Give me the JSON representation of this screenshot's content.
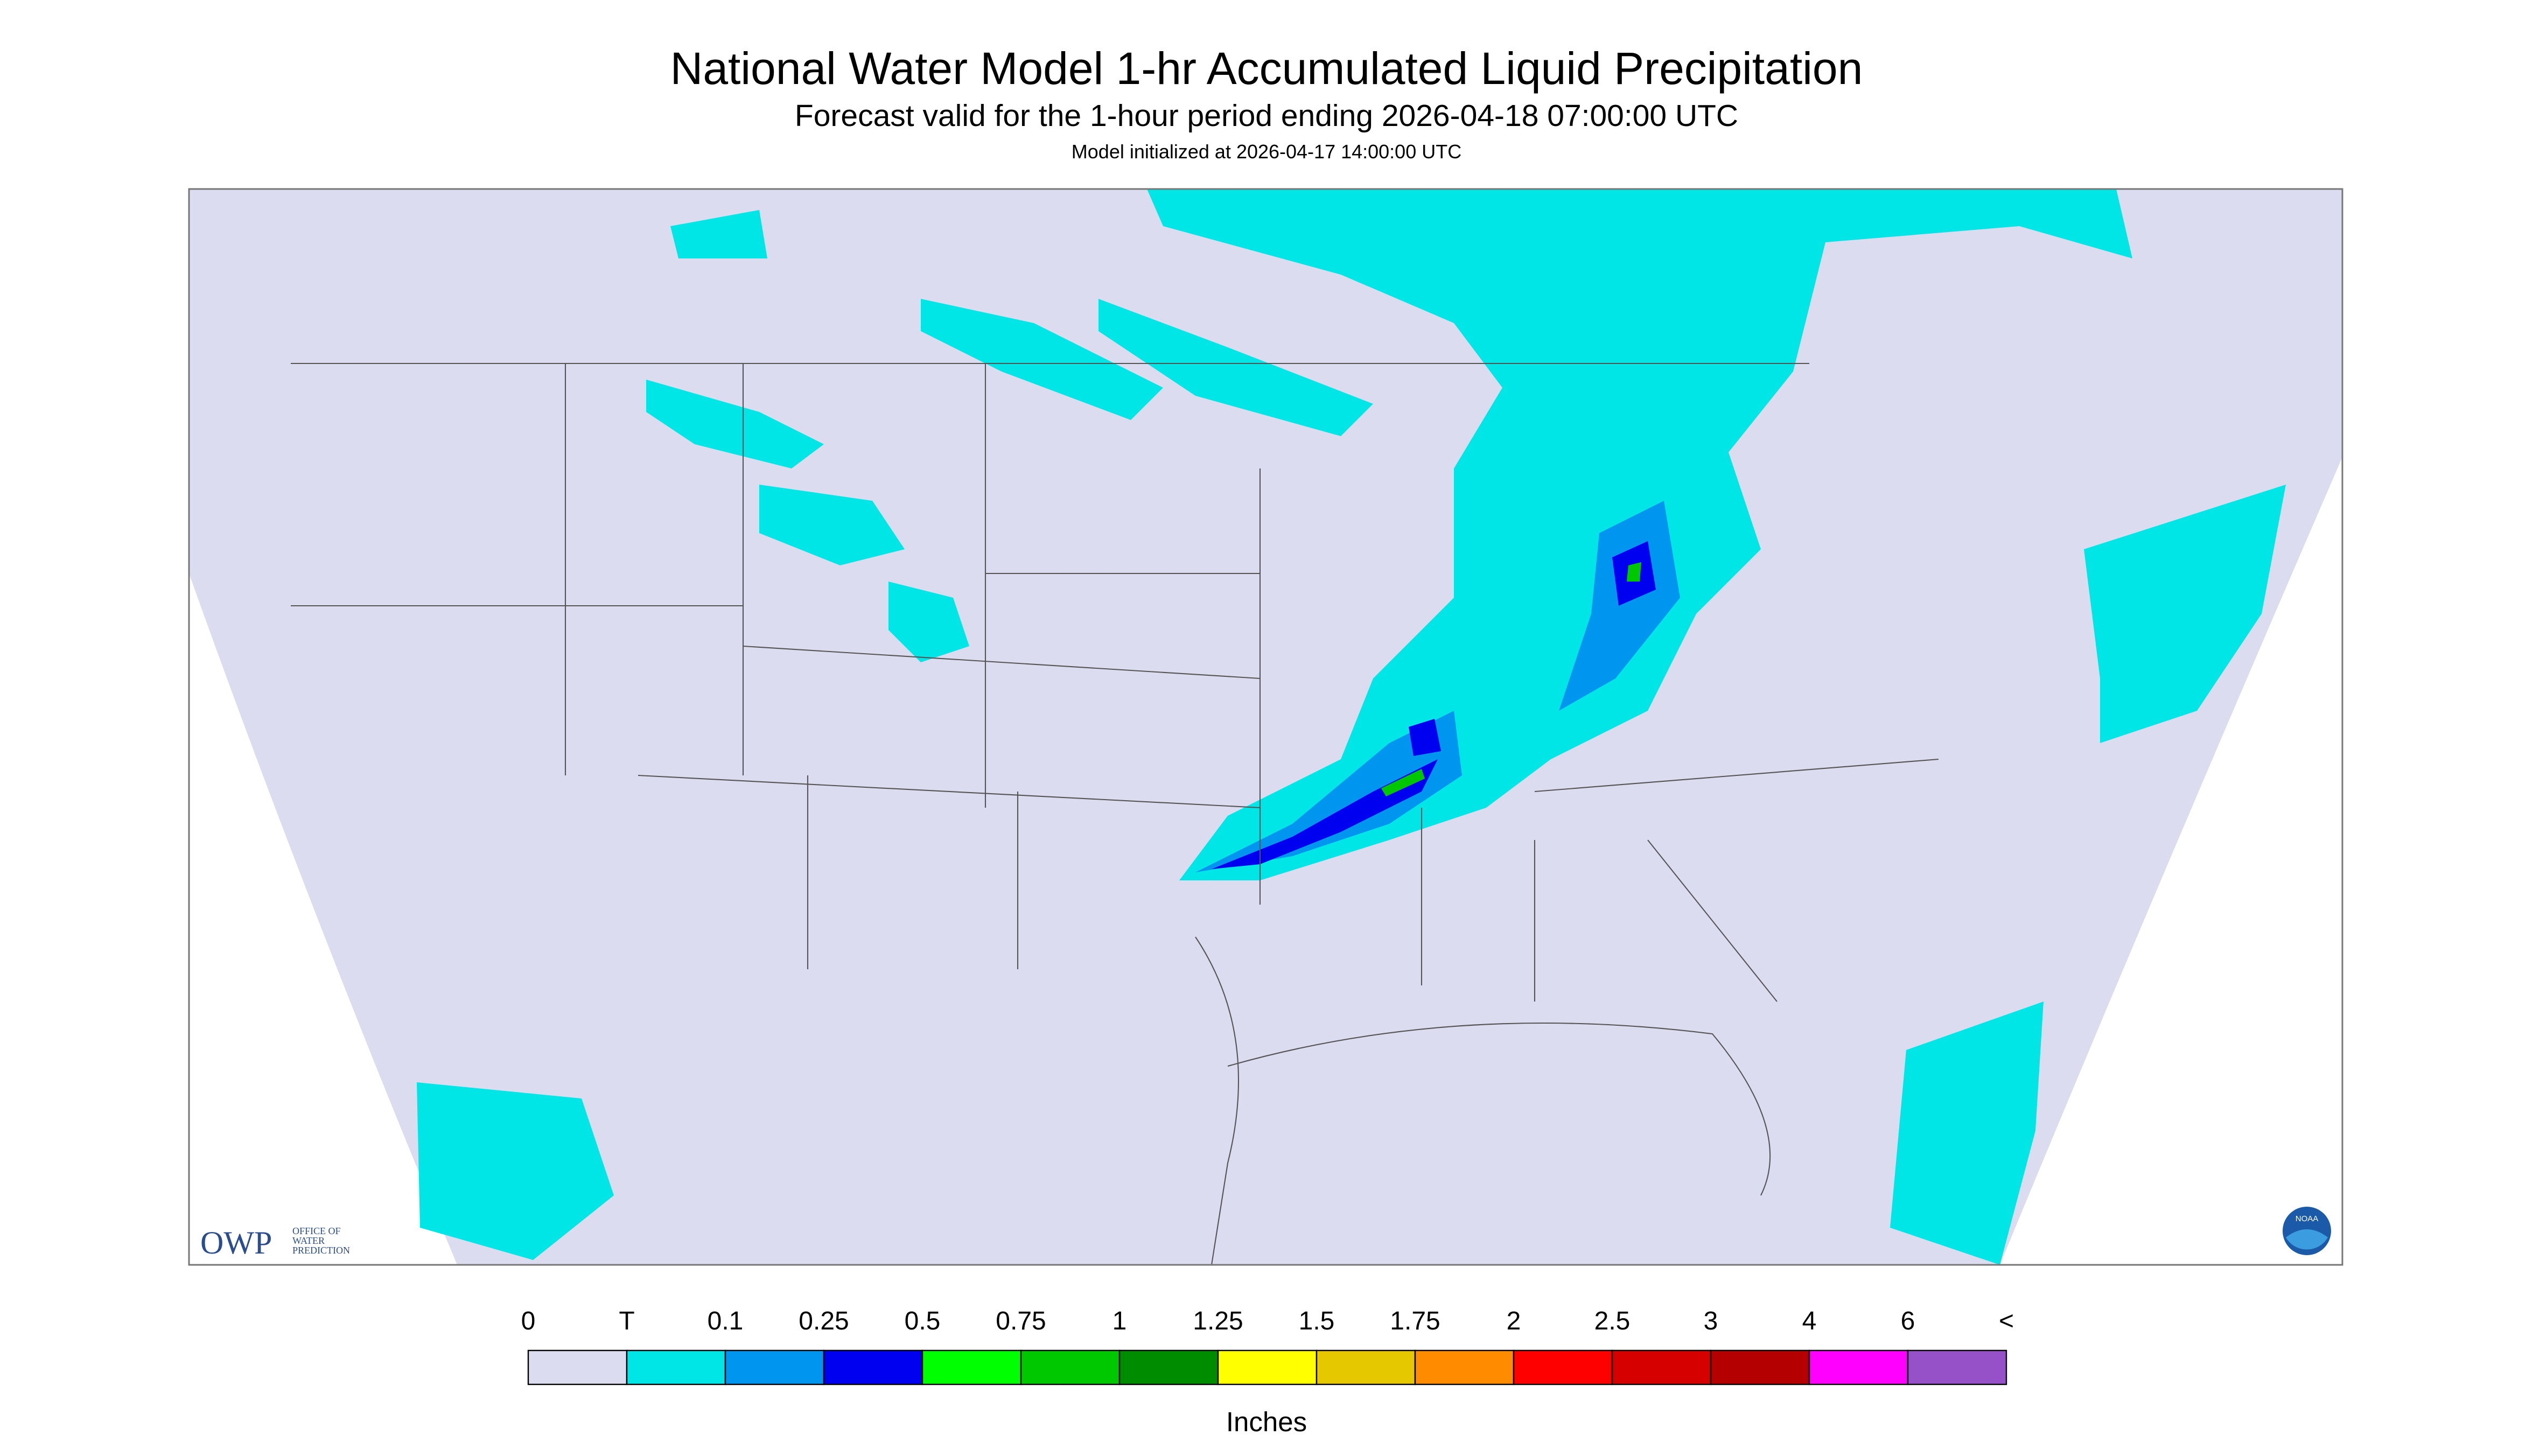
{
  "header": {
    "title": "National Water Model 1-hr Accumulated Liquid Precipitation",
    "subtitle": "Forecast valid for the 1-hour period ending 2026-04-18 07:00:00 UTC",
    "note": "Model initialized at 2026-04-17 14:00:00 UTC"
  },
  "logos": {
    "owp": "OWP",
    "owp_text": [
      "OFFICE OF",
      "WATER",
      "PREDICTION"
    ],
    "noaa": "NOAA"
  },
  "legend": {
    "labels": [
      "0",
      "T",
      "0.1",
      "0.25",
      "0.5",
      "0.75",
      "1",
      "1.25",
      "1.5",
      "1.75",
      "2",
      "2.5",
      "3",
      "4",
      "6",
      "<"
    ],
    "colors": [
      "#dcdcf0",
      "#00e6e6",
      "#0096f0",
      "#0000f0",
      "#00ff00",
      "#00c800",
      "#008c00",
      "#ffff00",
      "#e6c800",
      "#ff8c00",
      "#ff0000",
      "#d70000",
      "#b40000",
      "#ff00ff",
      "#9650c8"
    ],
    "units": "Inches"
  }
}
